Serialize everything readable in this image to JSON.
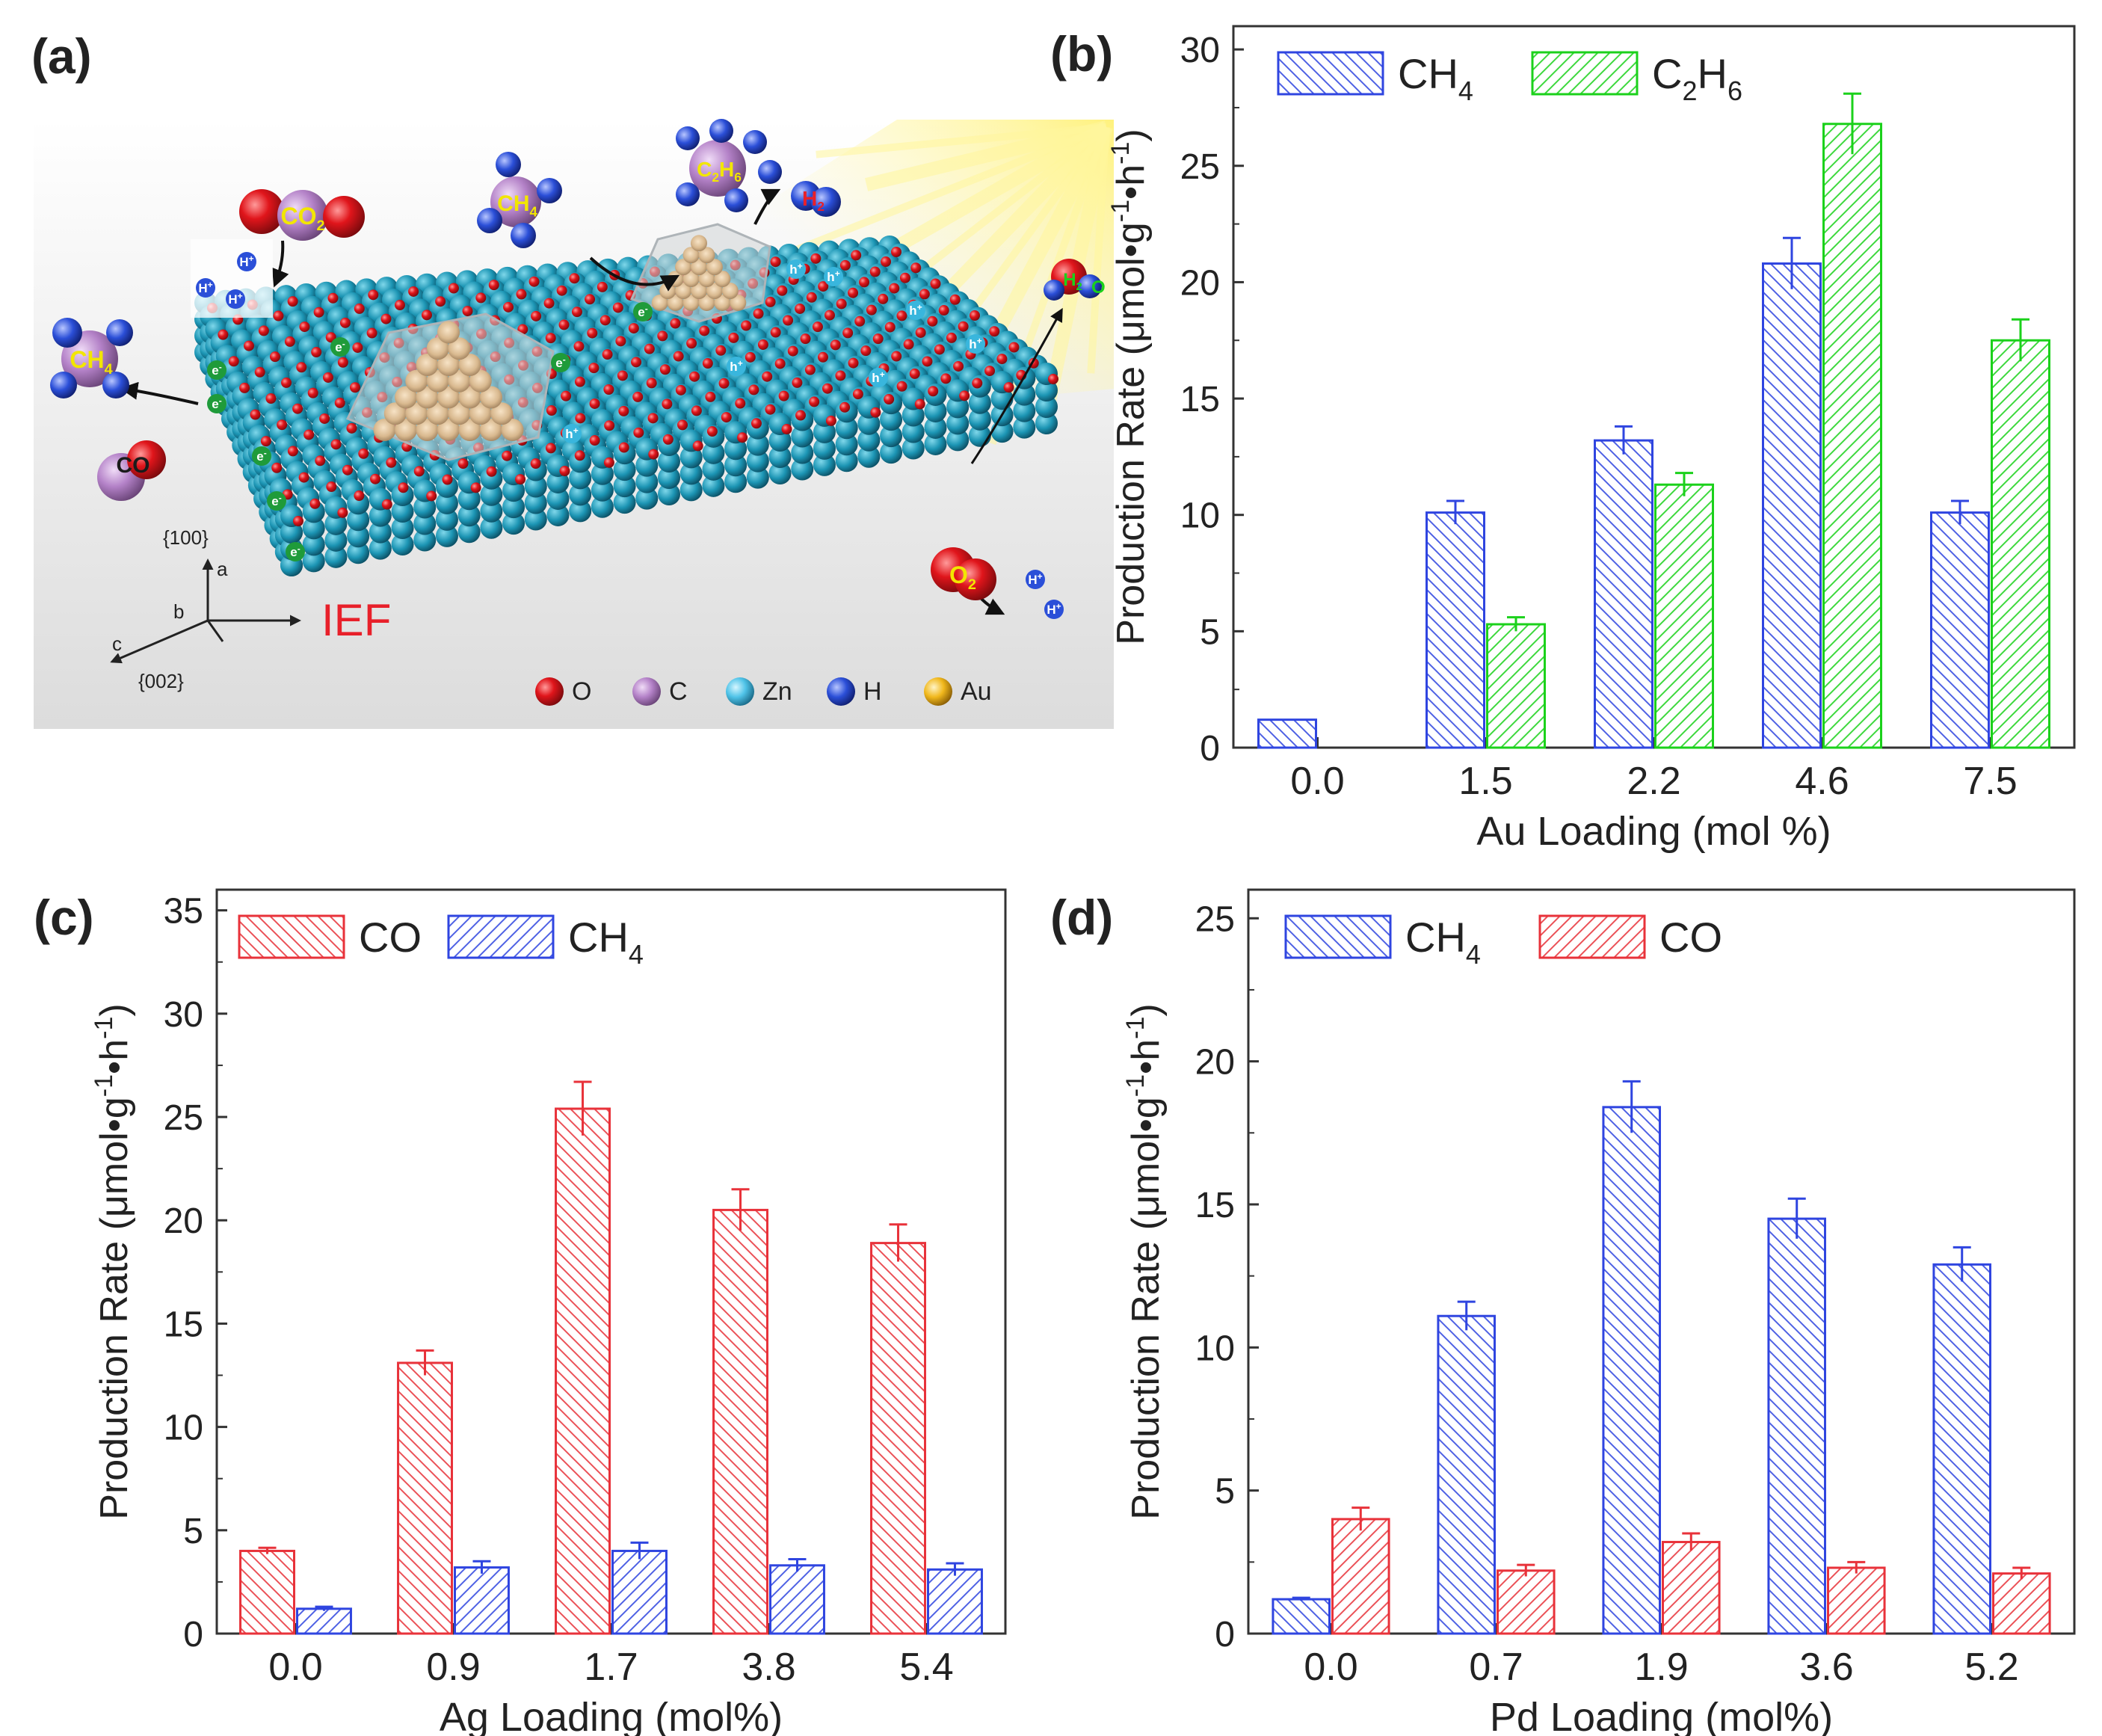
{
  "figure": {
    "panel_a": {
      "label": "(a)",
      "molecules": {
        "co2": "CO2",
        "ch4_top": "CH4",
        "c2h6": "C2H6",
        "h2": "H2",
        "ch4_left": "CH4",
        "co": "CO",
        "h2o": "H2O",
        "o2": "O2"
      },
      "charge_labels": {
        "electron": "e",
        "hole": "h",
        "proton": "H",
        "plus": "+",
        "minus": "-"
      },
      "axes_labels": {
        "a": "a",
        "b": "b",
        "c": "c",
        "facet_100": "{100}",
        "facet_002": "{002}"
      },
      "ief_label": "IEF",
      "legend": [
        {
          "symbol": "O",
          "color": "#e0151b"
        },
        {
          "symbol": "C",
          "color": "#b482c8"
        },
        {
          "symbol": "Zn",
          "color": "#4fc3e8"
        },
        {
          "symbol": "H",
          "color": "#2b4fd8"
        },
        {
          "symbol": "Au",
          "color": "#f1b81c"
        }
      ]
    },
    "colors": {
      "blue": "#2f45e0",
      "green": "#1bd11b",
      "red": "#e8323a"
    }
  },
  "chart_data": [
    {
      "id": "b",
      "panel_label": "(b)",
      "type": "bar",
      "xlabel": "Au Loading  (mol %)",
      "ylabel_text": "Production Rate (μmol•g",
      "ylabel_sup1": "-1",
      "ylabel_mid": "•h",
      "ylabel_sup2": "-1",
      "ylabel_end": ")",
      "ylim": [
        0,
        31
      ],
      "yticks": [
        0,
        5,
        10,
        15,
        20,
        25,
        30
      ],
      "categories": [
        "0.0",
        "1.5",
        "2.2",
        "4.6",
        "7.5"
      ],
      "legend_position": "top-left",
      "series": [
        {
          "name": "CH4",
          "base": "CH",
          "sub": "4",
          "sub2": "",
          "color": "#2f45e0",
          "values": [
            1.2,
            10.1,
            13.2,
            20.8,
            10.1
          ],
          "errors": [
            0,
            0.5,
            0.6,
            1.1,
            0.5
          ],
          "hatch": "back"
        },
        {
          "name": "C2H6",
          "base": "C",
          "sub": "2",
          "mid": "H",
          "sub2": "6",
          "color": "#1bd11b",
          "values": [
            0.0,
            5.3,
            11.3,
            26.8,
            17.5
          ],
          "errors": [
            0,
            0.3,
            0.5,
            1.3,
            0.9
          ],
          "hatch": "fwd"
        }
      ]
    },
    {
      "id": "c",
      "panel_label": "(c)",
      "type": "bar",
      "xlabel": "Ag Loading (mol%)",
      "ylabel_text": "Production Rate (μmol•g",
      "ylabel_sup1": "-1",
      "ylabel_mid": "•h",
      "ylabel_sup2": "-1",
      "ylabel_end": ")",
      "ylim": [
        0,
        36
      ],
      "yticks": [
        0,
        5,
        10,
        15,
        20,
        25,
        30,
        35
      ],
      "categories": [
        "0.0",
        "0.9",
        "1.7",
        "3.8",
        "5.4"
      ],
      "legend_position": "top-left",
      "series": [
        {
          "name": "CO",
          "base": "CO",
          "sub": "",
          "sub2": "",
          "color": "#e8323a",
          "values": [
            4.0,
            13.1,
            25.4,
            20.5,
            18.9
          ],
          "errors": [
            0.15,
            0.6,
            1.3,
            1.0,
            0.9
          ],
          "hatch": "back"
        },
        {
          "name": "CH4",
          "base": "CH",
          "sub": "4",
          "sub2": "",
          "color": "#2f45e0",
          "values": [
            1.2,
            3.2,
            4.0,
            3.3,
            3.1
          ],
          "errors": [
            0.1,
            0.3,
            0.4,
            0.3,
            0.3
          ],
          "hatch": "fwd"
        }
      ]
    },
    {
      "id": "d",
      "panel_label": "(d)",
      "type": "bar",
      "xlabel": "Pd Loading (mol%)",
      "ylabel_text": "Production Rate (μmol•g",
      "ylabel_sup1": "-1",
      "ylabel_mid": "•h",
      "ylabel_sup2": "-1",
      "ylabel_end": ")",
      "ylim": [
        0,
        26
      ],
      "yticks": [
        0,
        5,
        10,
        15,
        20,
        25
      ],
      "categories": [
        "0.0",
        "0.7",
        "1.9",
        "3.6",
        "5.2"
      ],
      "legend_position": "top-left",
      "series": [
        {
          "name": "CH4",
          "base": "CH",
          "sub": "4",
          "sub2": "",
          "color": "#2f45e0",
          "values": [
            1.2,
            11.1,
            18.4,
            14.5,
            12.9
          ],
          "errors": [
            0.05,
            0.5,
            0.9,
            0.7,
            0.6
          ],
          "hatch": "back"
        },
        {
          "name": "CO",
          "base": "CO",
          "sub": "",
          "sub2": "",
          "color": "#e8323a",
          "values": [
            4.0,
            2.2,
            3.2,
            2.3,
            2.1
          ],
          "errors": [
            0.4,
            0.2,
            0.3,
            0.2,
            0.2
          ],
          "hatch": "fwd"
        }
      ]
    }
  ]
}
